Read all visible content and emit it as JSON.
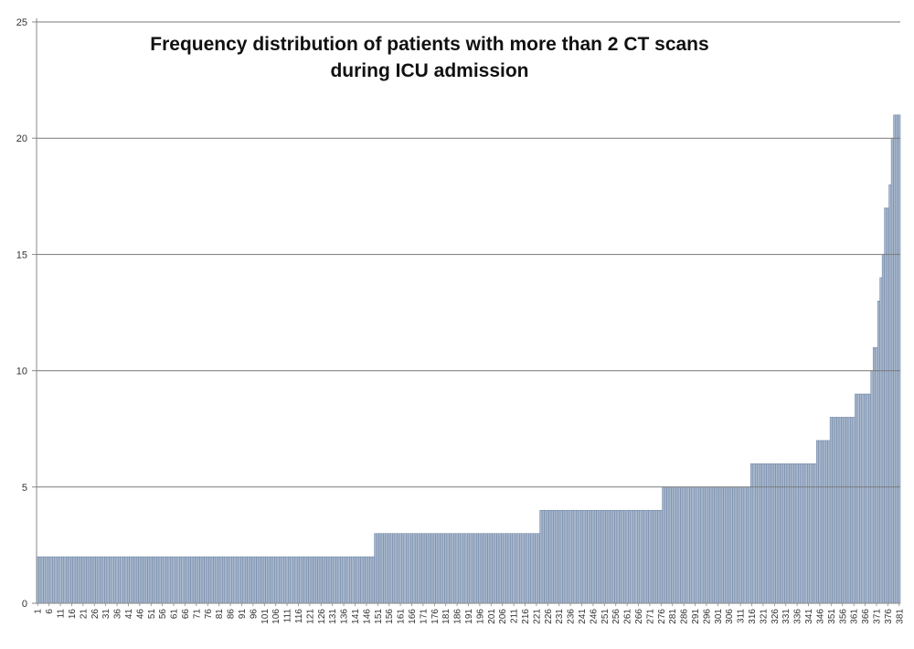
{
  "chart_data": {
    "type": "bar",
    "title_lines": [
      "Frequency distribution of patients with more than 2 CT scans",
      "during ICU admission"
    ],
    "xlabel": "",
    "ylabel": "",
    "ylim": [
      0,
      25
    ],
    "y_ticks": [
      "0",
      "5",
      "10",
      "15",
      "20",
      "25"
    ],
    "x_count": 381,
    "x_tick_every": 5,
    "x_tick_labels": [
      "1",
      "6",
      "11",
      "16",
      "21",
      "26",
      "31",
      "36",
      "41",
      "46",
      "51",
      "56",
      "61",
      "66",
      "71",
      "76",
      "81",
      "86",
      "91",
      "96",
      "101",
      "106",
      "111",
      "116",
      "121",
      "126",
      "131",
      "136",
      "141",
      "146",
      "151",
      "156",
      "161",
      "166",
      "171",
      "176",
      "181",
      "186",
      "191",
      "196",
      "201",
      "206",
      "211",
      "216",
      "221",
      "226",
      "231",
      "236",
      "241",
      "246",
      "251",
      "256",
      "261",
      "266",
      "271",
      "276",
      "281",
      "286",
      "291",
      "296",
      "301",
      "306",
      "311",
      "316",
      "321",
      "326",
      "331",
      "336",
      "341",
      "346",
      "351",
      "356",
      "361",
      "366",
      "371",
      "376",
      "381"
    ],
    "value_runs": [
      {
        "from": 1,
        "to": 149,
        "value": 2
      },
      {
        "from": 150,
        "to": 222,
        "value": 3
      },
      {
        "from": 223,
        "to": 276,
        "value": 4
      },
      {
        "from": 277,
        "to": 315,
        "value": 5
      },
      {
        "from": 316,
        "to": 344,
        "value": 6
      },
      {
        "from": 345,
        "to": 350,
        "value": 7
      },
      {
        "from": 351,
        "to": 361,
        "value": 8
      },
      {
        "from": 362,
        "to": 368,
        "value": 9
      },
      {
        "from": 369,
        "to": 369,
        "value": 10
      },
      {
        "from": 370,
        "to": 371,
        "value": 11
      },
      {
        "from": 372,
        "to": 372,
        "value": 13
      },
      {
        "from": 373,
        "to": 373,
        "value": 14
      },
      {
        "from": 374,
        "to": 374,
        "value": 15
      },
      {
        "from": 375,
        "to": 376,
        "value": 17
      },
      {
        "from": 377,
        "to": 377,
        "value": 18
      },
      {
        "from": 378,
        "to": 378,
        "value": 20
      },
      {
        "from": 379,
        "to": 381,
        "value": 21
      }
    ],
    "grid": true,
    "legend": "none",
    "colors": {
      "bar_fill": "#a9b8cc",
      "bar_edge": "#6d84a6",
      "gridline": "#7a7a7a",
      "axis": "#8a8a8a",
      "text": "#333333"
    }
  }
}
